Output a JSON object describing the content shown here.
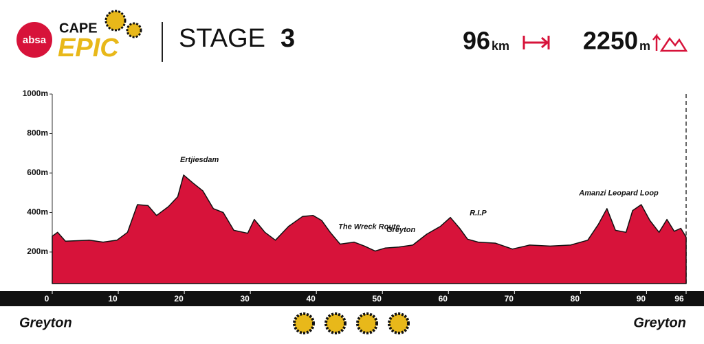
{
  "header": {
    "logo": "absa",
    "brand_top": "CAPE",
    "brand_bottom": "EPIC",
    "stage_label": "STAGE",
    "stage_number": "3",
    "distance": "96",
    "distance_unit": "km",
    "climbing": "2250",
    "climbing_unit": "m"
  },
  "chart_data": {
    "type": "area",
    "color": "#d7133a",
    "x": [
      0,
      0.8,
      2,
      5.6,
      7.7,
      9.8,
      11.4,
      12.9,
      14.5,
      15.8,
      17.6,
      19,
      19.9,
      21.3,
      22.8,
      24.4,
      25.9,
      27.5,
      29.6,
      30.6,
      32.2,
      33.8,
      35.8,
      37.9,
      39.5,
      40.8,
      42.1,
      43.6,
      45.7,
      47.3,
      48.9,
      50.4,
      52.5,
      54.6,
      56.7,
      58.8,
      60.3,
      61.7,
      62.9,
      64.5,
      67.1,
      69.7,
      72.3,
      75.4,
      78.5,
      81.1,
      82.7,
      84,
      85.3,
      86.9,
      87.9,
      89.2,
      90.5,
      91.9,
      93.1,
      94.2,
      95.2,
      96
    ],
    "values": [
      280,
      300,
      255,
      260,
      250,
      260,
      300,
      440,
      435,
      385,
      430,
      480,
      590,
      550,
      510,
      420,
      400,
      310,
      295,
      365,
      300,
      260,
      330,
      380,
      385,
      360,
      300,
      240,
      250,
      230,
      205,
      220,
      225,
      235,
      290,
      330,
      375,
      320,
      265,
      250,
      245,
      215,
      235,
      230,
      235,
      260,
      340,
      420,
      310,
      300,
      410,
      440,
      360,
      300,
      365,
      305,
      320,
      275
    ],
    "xlim": [
      0,
      96
    ],
    "ylim": [
      40,
      1000
    ],
    "xticks": [
      0,
      10,
      20,
      30,
      40,
      50,
      60,
      70,
      80,
      90,
      96
    ],
    "yticks": [
      {
        "value": 200,
        "label": "200m"
      },
      {
        "value": 400,
        "label": "400m"
      },
      {
        "value": 600,
        "label": "600m"
      },
      {
        "value": 800,
        "label": "800m"
      },
      {
        "value": 1000,
        "label": "1000m"
      }
    ],
    "annotations": [
      {
        "text": "Ertjiesdam",
        "x": 22.3
      },
      {
        "text": "The Wreck Route",
        "x": 48
      },
      {
        "text": "Greyton",
        "x": 52.8
      },
      {
        "text": "R.I.P",
        "x": 64.5
      },
      {
        "text": "Amanzi Leopard Loop",
        "x": 85.8
      }
    ],
    "start_label": "Greyton",
    "end_label": "Greyton"
  }
}
